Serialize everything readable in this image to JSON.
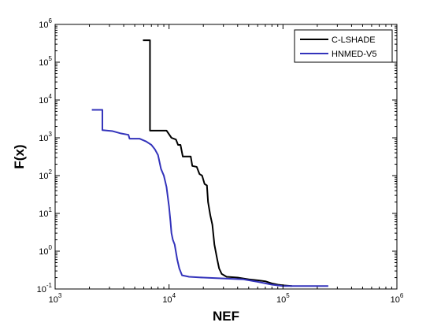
{
  "chart_data": {
    "type": "line",
    "title": "",
    "xlabel": "NEF",
    "ylabel": "F(x)",
    "xscale": "log",
    "yscale": "log",
    "xlim": [
      1000,
      1000000
    ],
    "ylim": [
      0.1,
      1000000
    ],
    "grid": false,
    "legend_position": "top-right",
    "x_ticks": [
      {
        "base": "10",
        "exp": "3"
      },
      {
        "base": "10",
        "exp": "4"
      },
      {
        "base": "10",
        "exp": "5"
      },
      {
        "base": "10",
        "exp": "6"
      }
    ],
    "y_ticks": [
      {
        "base": "10",
        "exp": "-1"
      },
      {
        "base": "10",
        "exp": "0"
      },
      {
        "base": "10",
        "exp": "1"
      },
      {
        "base": "10",
        "exp": "2"
      },
      {
        "base": "10",
        "exp": "3"
      },
      {
        "base": "10",
        "exp": "4"
      },
      {
        "base": "10",
        "exp": "5"
      },
      {
        "base": "10",
        "exp": "6"
      }
    ],
    "series": [
      {
        "name": "C-LSHADE",
        "color": "#000000",
        "points": [
          [
            5900,
            380000
          ],
          [
            6800,
            380000
          ],
          [
            6800,
            1550
          ],
          [
            9500,
            1550
          ],
          [
            10500,
            1000
          ],
          [
            11500,
            900
          ],
          [
            12000,
            650
          ],
          [
            12600,
            650
          ],
          [
            13200,
            320
          ],
          [
            15500,
            320
          ],
          [
            16000,
            180
          ],
          [
            17500,
            170
          ],
          [
            18500,
            110
          ],
          [
            19500,
            100
          ],
          [
            20500,
            60
          ],
          [
            21500,
            55
          ],
          [
            22000,
            20
          ],
          [
            23000,
            9
          ],
          [
            24000,
            5
          ],
          [
            25000,
            1.5
          ],
          [
            26500,
            0.6
          ],
          [
            27500,
            0.35
          ],
          [
            29000,
            0.25
          ],
          [
            32000,
            0.21
          ],
          [
            40000,
            0.2
          ],
          [
            50000,
            0.18
          ],
          [
            60000,
            0.17
          ],
          [
            70000,
            0.16
          ],
          [
            80000,
            0.14
          ],
          [
            90000,
            0.13
          ],
          [
            100000,
            0.125
          ],
          [
            120000,
            0.12
          ]
        ]
      },
      {
        "name": "HNMED-V5",
        "color": "#3333bb",
        "points": [
          [
            2100,
            5500
          ],
          [
            2600,
            5500
          ],
          [
            2600,
            1600
          ],
          [
            3200,
            1500
          ],
          [
            3800,
            1300
          ],
          [
            4400,
            1200
          ],
          [
            4500,
            950
          ],
          [
            5500,
            950
          ],
          [
            6300,
            800
          ],
          [
            7000,
            650
          ],
          [
            7500,
            500
          ],
          [
            8000,
            350
          ],
          [
            8500,
            150
          ],
          [
            9000,
            100
          ],
          [
            9500,
            50
          ],
          [
            10000,
            15
          ],
          [
            10300,
            6
          ],
          [
            10500,
            3
          ],
          [
            10800,
            2
          ],
          [
            11200,
            1.5
          ],
          [
            11800,
            0.6
          ],
          [
            12300,
            0.35
          ],
          [
            13000,
            0.23
          ],
          [
            15000,
            0.21
          ],
          [
            20000,
            0.2
          ],
          [
            30000,
            0.19
          ],
          [
            45000,
            0.18
          ],
          [
            60000,
            0.155
          ],
          [
            80000,
            0.13
          ],
          [
            100000,
            0.12
          ],
          [
            150000,
            0.12
          ],
          [
            250000,
            0.12
          ]
        ]
      }
    ]
  }
}
